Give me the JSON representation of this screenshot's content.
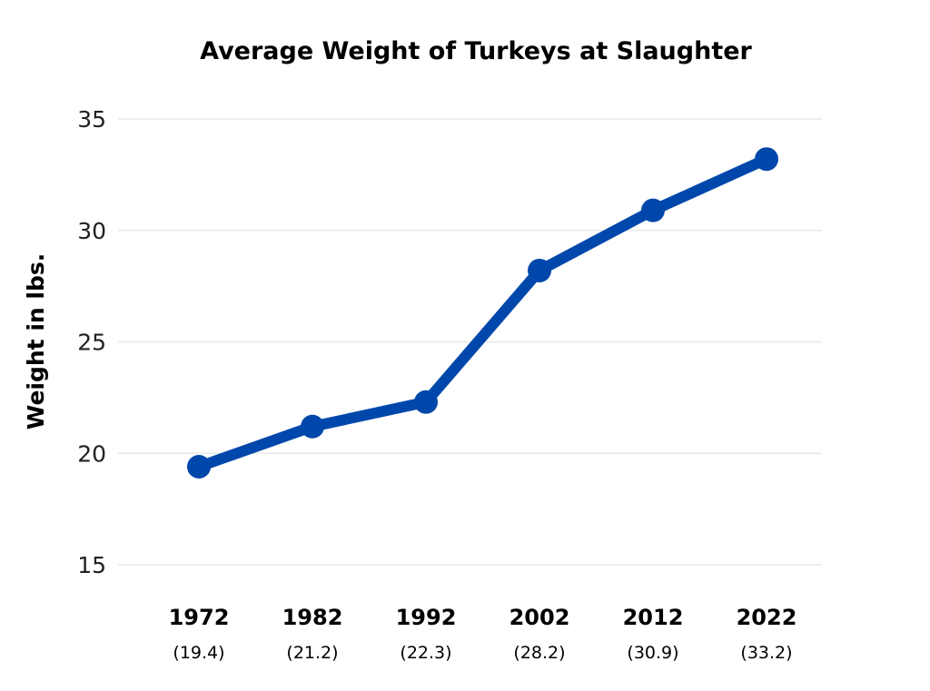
{
  "chart_data": {
    "type": "line",
    "title": "Average Weight of Turkeys at Slaughter",
    "xlabel": "",
    "ylabel": "Weight in lbs.",
    "categories": [
      "1972",
      "1982",
      "1992",
      "2002",
      "2012",
      "2022"
    ],
    "value_labels": [
      "(19.4)",
      "(21.2)",
      "(22.3)",
      "(28.2)",
      "(30.9)",
      "(33.2)"
    ],
    "series": [
      {
        "values": [
          19.4,
          21.2,
          22.3,
          28.2,
          30.9,
          33.2
        ],
        "color": "#0047AB"
      }
    ],
    "yticks": [
      "15",
      "20",
      "25",
      "30",
      "35"
    ],
    "ylim": [
      15,
      35
    ],
    "grid": true,
    "legend": "none"
  }
}
